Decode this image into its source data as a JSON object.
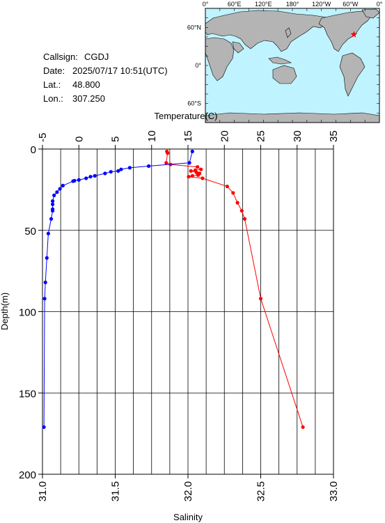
{
  "info": {
    "callsign_label": "Callsign:",
    "callsign": "CGDJ",
    "date_label": "Date:",
    "date": "2025/07/17 10:51(UTC)",
    "lat_label": "Lat.:",
    "lat": "48.800",
    "lon_label": "Lon.:",
    "lon": "307.250"
  },
  "map": {
    "ocean_color": "#bff3ff",
    "land_color": "#b4b4b4",
    "marker_color": "#ff0000",
    "top_labels": [
      "0°",
      "60°E",
      "120°E",
      "180°",
      "120°W",
      "60°W",
      "0°"
    ],
    "left_labels": [
      "60°N",
      "0°",
      "60°S"
    ],
    "station_lon": 307.25,
    "station_lat": 48.8
  },
  "chart_data": {
    "type": "scatter",
    "xlabel_top": "Temperature(C)",
    "xlabel_bottom": "Salinity",
    "ylabel": "Depth(m)",
    "grid": true,
    "y_axis": {
      "range": [
        0,
        200
      ],
      "inverted": true,
      "ticks": [
        0,
        50,
        100,
        150,
        200
      ]
    },
    "temperature_axis": {
      "range": [
        -5,
        35
      ],
      "ticks": [
        -5,
        0,
        5,
        10,
        15,
        20,
        25,
        30,
        35
      ],
      "grid_step": 2.5
    },
    "salinity_axis": {
      "range": [
        31.0,
        33.0
      ],
      "ticks": [
        "31.0",
        "31.5",
        "32.0",
        "32.5",
        "33.0"
      ]
    },
    "series": [
      {
        "name": "Temperature(C)",
        "color": "#ff0000",
        "axis": "top",
        "points": [
          [
            12.1,
            1.5
          ],
          [
            12.2,
            2.5
          ],
          [
            12.0,
            8.5
          ],
          [
            12.6,
            9.5
          ],
          [
            16.3,
            11.0
          ],
          [
            16.8,
            12.5
          ],
          [
            16.0,
            13.0
          ],
          [
            15.4,
            13.5
          ],
          [
            16.2,
            14.5
          ],
          [
            16.6,
            15.0
          ],
          [
            16.4,
            16.0
          ],
          [
            15.6,
            16.5
          ],
          [
            15.1,
            17.0
          ],
          [
            17.0,
            18.0
          ],
          [
            20.4,
            23.0
          ],
          [
            21.2,
            27.0
          ],
          [
            21.8,
            33.0
          ],
          [
            22.4,
            38.0
          ],
          [
            22.8,
            43.0
          ],
          [
            25.0,
            92.0
          ],
          [
            30.8,
            171.0
          ]
        ]
      },
      {
        "name": "Salinity",
        "color": "#0000ff",
        "axis": "bottom",
        "points": [
          [
            32.03,
            1.5
          ],
          [
            32.01,
            8.5
          ],
          [
            31.73,
            10.5
          ],
          [
            31.6,
            11.5
          ],
          [
            31.54,
            12.5
          ],
          [
            31.52,
            13.5
          ],
          [
            31.47,
            14.0
          ],
          [
            31.43,
            15.0
          ],
          [
            31.36,
            16.5
          ],
          [
            31.33,
            17.0
          ],
          [
            31.3,
            18.0
          ],
          [
            31.25,
            19.0
          ],
          [
            31.22,
            19.5
          ],
          [
            31.21,
            19.8
          ],
          [
            31.14,
            22.5
          ],
          [
            31.12,
            24.5
          ],
          [
            31.1,
            26.5
          ],
          [
            31.08,
            28.5
          ],
          [
            31.07,
            32.0
          ],
          [
            31.07,
            34.0
          ],
          [
            31.07,
            37.0
          ],
          [
            31.07,
            38.0
          ],
          [
            31.06,
            43.0
          ],
          [
            31.04,
            52.0
          ],
          [
            31.03,
            67.0
          ],
          [
            31.02,
            82.0
          ],
          [
            31.015,
            92.0
          ],
          [
            31.01,
            171.0
          ]
        ]
      }
    ]
  }
}
